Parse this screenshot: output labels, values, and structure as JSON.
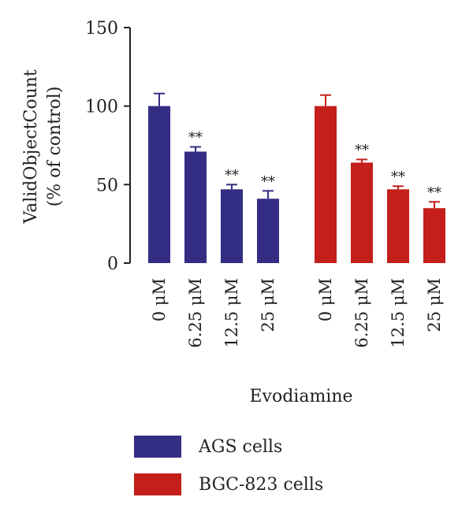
{
  "chart_data": {
    "type": "bar",
    "xlabel": "Evodiamine",
    "ylabel": [
      "ValidObjectCount",
      "(% of control)"
    ],
    "ylim": [
      0,
      150
    ],
    "yticks": [
      0,
      50,
      100,
      150
    ],
    "categories": [
      "0 μM",
      "6.25 μM",
      "12.5 μM",
      "25 μM"
    ],
    "series": [
      {
        "name": "AGS cells",
        "color": "#342d84",
        "values": [
          100,
          71,
          47,
          41
        ],
        "errors": [
          8,
          3,
          3,
          5
        ],
        "annotations": [
          "",
          "**",
          "**",
          "**"
        ]
      },
      {
        "name": "BGC-823 cells",
        "color": "#c41f1a",
        "values": [
          100,
          64,
          47,
          35
        ],
        "errors": [
          7,
          2,
          2,
          4
        ],
        "annotations": [
          "",
          "**",
          "**",
          "**"
        ]
      }
    ],
    "grid": false,
    "legend_position": "bottom"
  }
}
